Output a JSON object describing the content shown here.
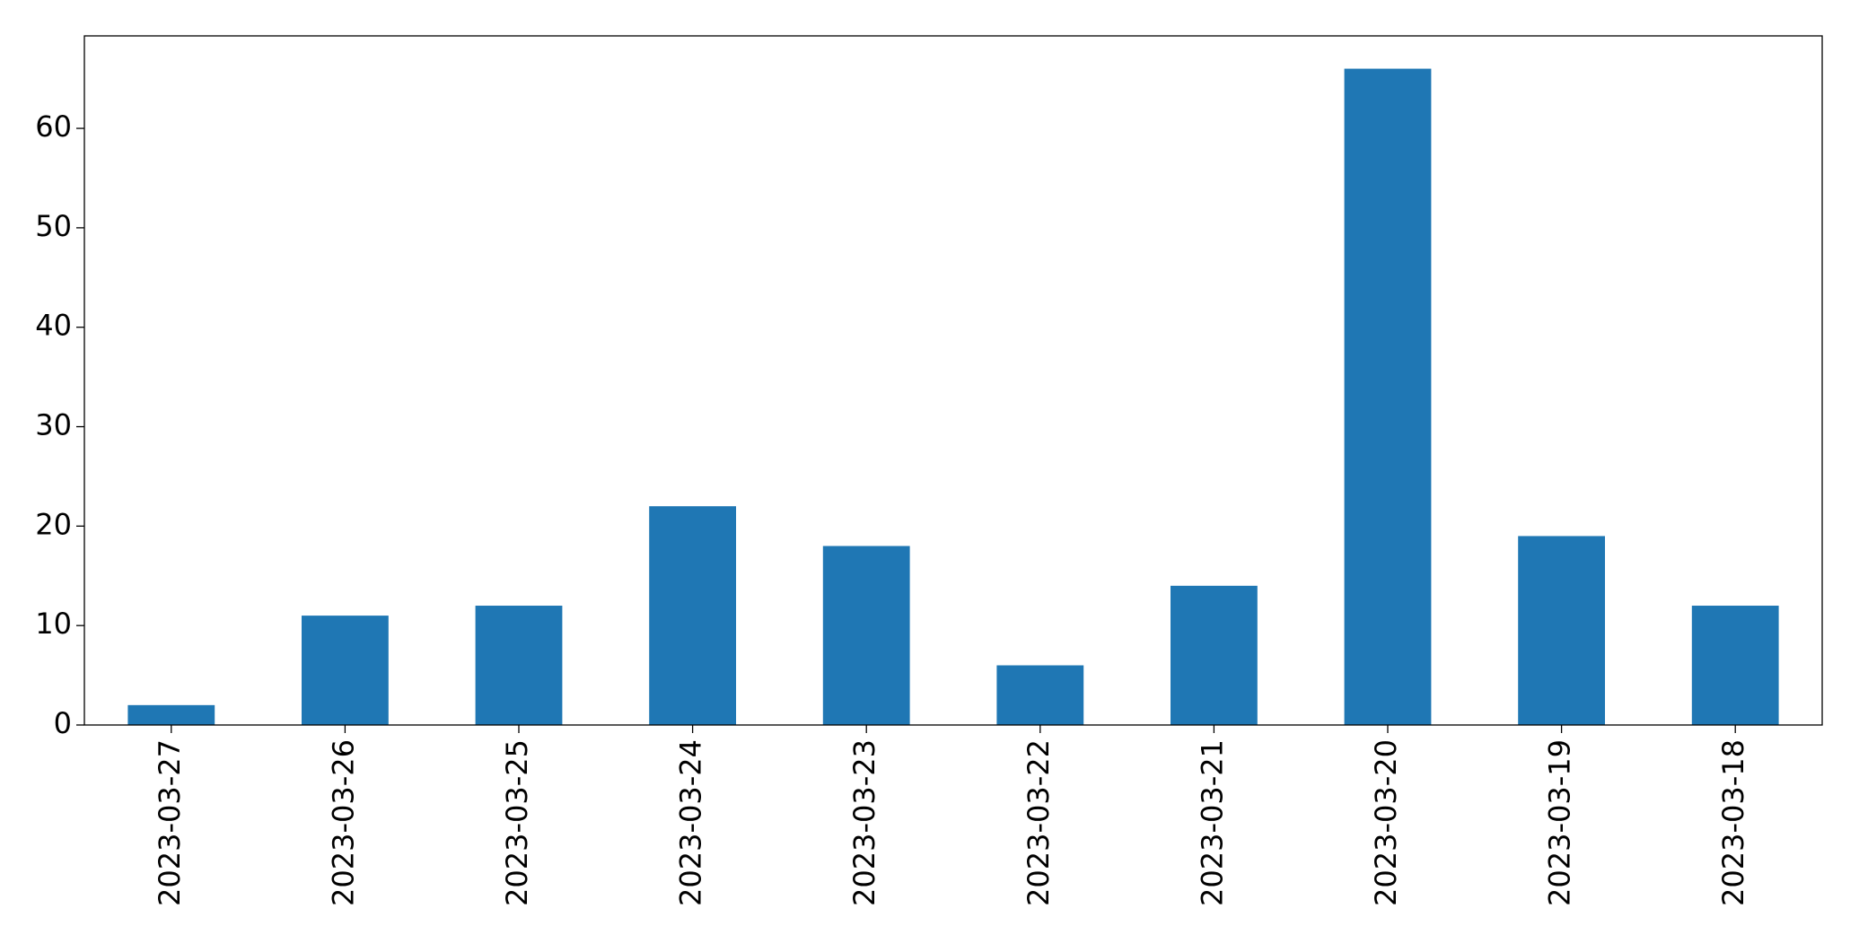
{
  "chart_data": {
    "type": "bar",
    "categories": [
      "2023-03-27",
      "2023-03-26",
      "2023-03-25",
      "2023-03-24",
      "2023-03-23",
      "2023-03-22",
      "2023-03-21",
      "2023-03-20",
      "2023-03-19",
      "2023-03-18"
    ],
    "values": [
      2,
      11,
      12,
      22,
      18,
      6,
      14,
      66,
      19,
      12
    ],
    "color": "#1f77b4",
    "ylim": [
      0,
      69.3
    ],
    "yticks": [
      0,
      10,
      20,
      30,
      40,
      50,
      60
    ],
    "grid": false
  }
}
